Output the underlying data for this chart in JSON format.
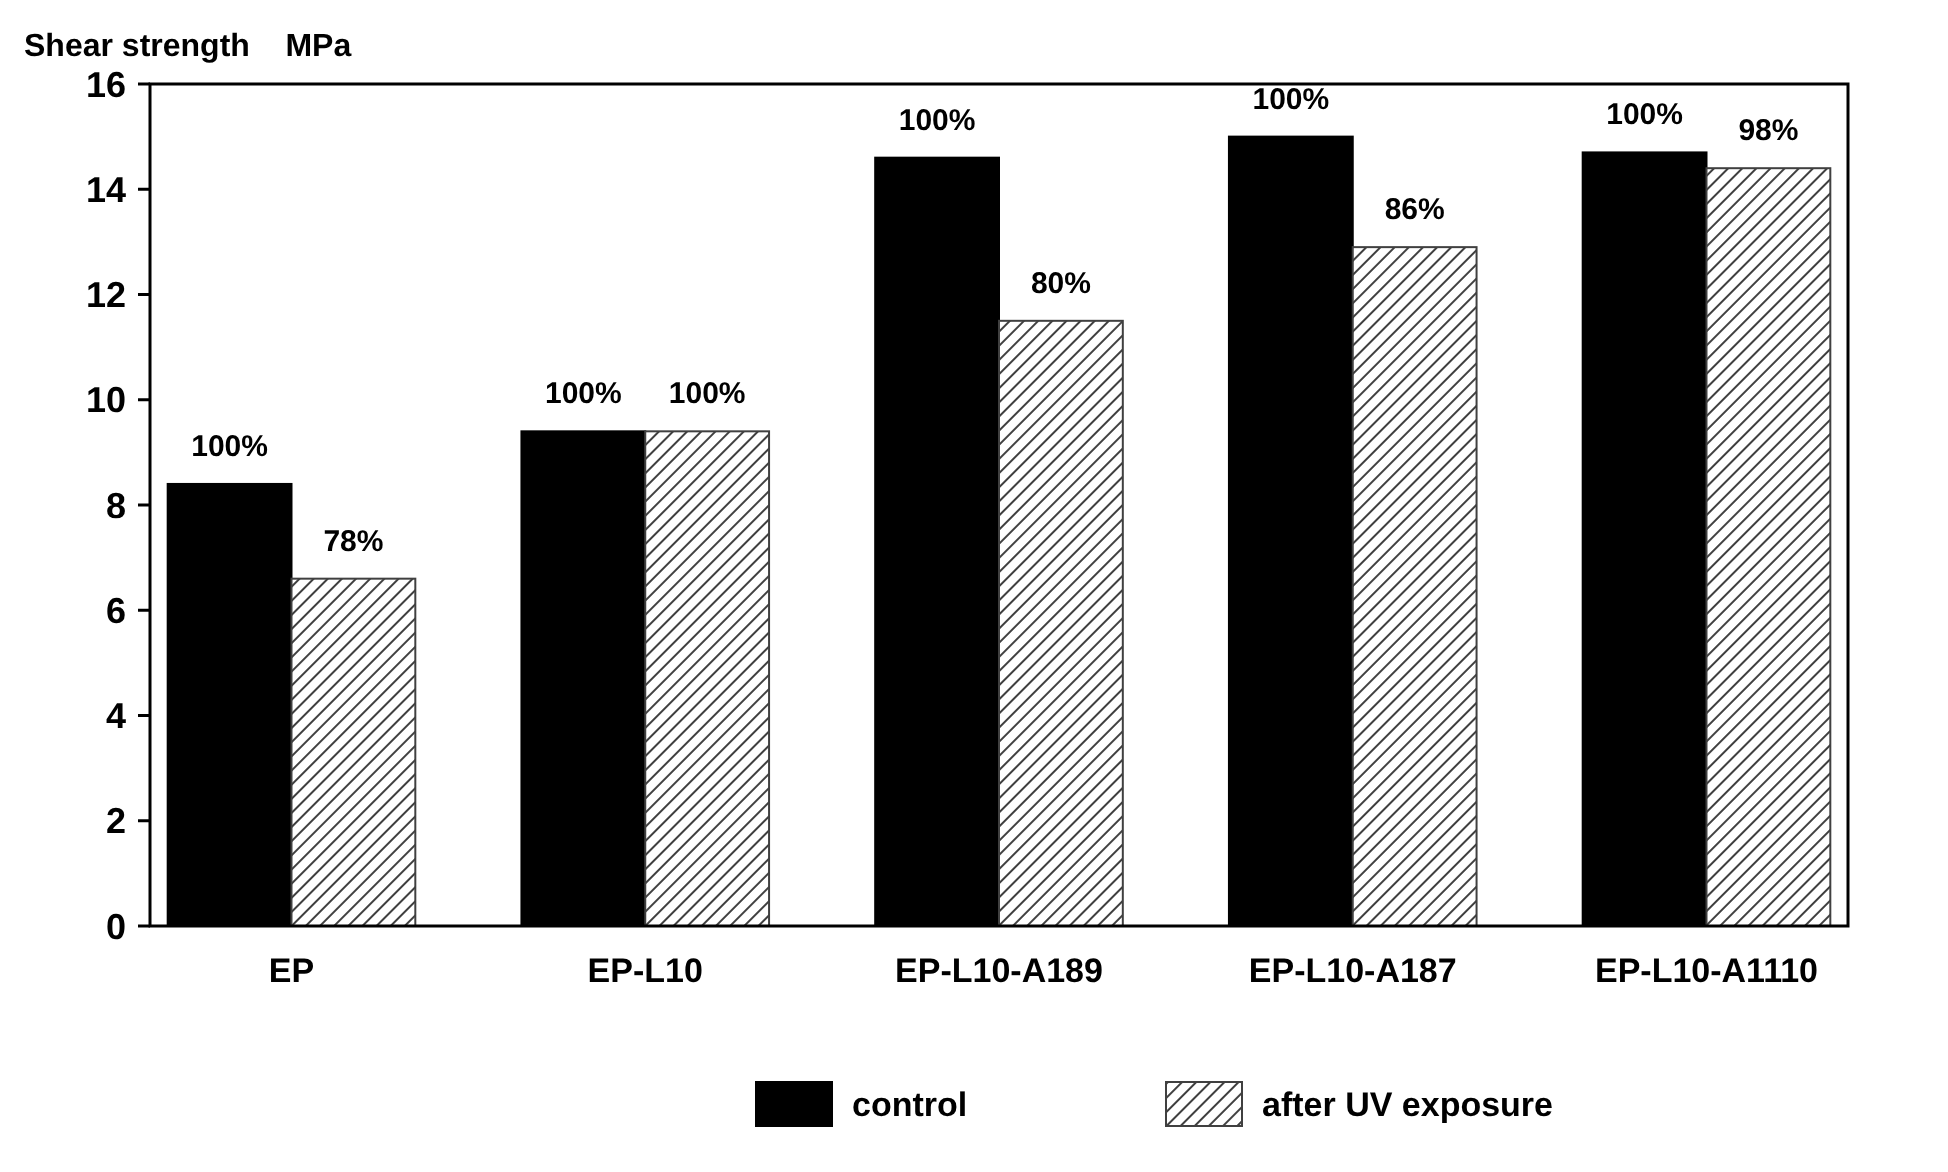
{
  "chart_data": {
    "type": "bar",
    "ylabel": "Shear strength    MPa",
    "categories": [
      "EP",
      "EP-L10",
      "EP-L10-A189",
      "EP-L10-A187",
      "EP-L10-A1110"
    ],
    "series": [
      {
        "name": "control",
        "color": "#000000",
        "values": [
          8.4,
          9.4,
          14.6,
          15.0,
          14.7
        ]
      },
      {
        "name": "after UV exposure",
        "color": "#404040",
        "values": [
          6.6,
          9.4,
          11.5,
          12.9,
          14.4
        ]
      }
    ],
    "annotations": [
      {
        "text": "100%",
        "x": "EP",
        "y": 8.4
      },
      {
        "text": "78%",
        "x": "EP",
        "y": 6.6
      },
      {
        "text": "100%",
        "x": "EP-L10",
        "y": 9.4
      },
      {
        "text": "100%",
        "x": "EP-L10",
        "y": 9.4
      },
      {
        "text": "100%",
        "x": "EP-L10-A189",
        "y": 14.6
      },
      {
        "text": "80%",
        "x": "EP-L10-A189",
        "y": 11.5
      },
      {
        "text": "100%",
        "x": "EP-L10-A187",
        "y": 15.0
      },
      {
        "text": "86%",
        "x": "EP-L10-A187",
        "y": 12.9
      },
      {
        "text": "100%",
        "x": "EP-L10-A1110",
        "y": 14.7
      },
      {
        "text": "98%",
        "x": "EP-L10-A1110",
        "y": 14.4
      }
    ],
    "ylim": [
      0,
      16
    ],
    "yticks": [
      0,
      2,
      4,
      6,
      8,
      10,
      12,
      14,
      16
    ],
    "grid": false,
    "legend": "bottom"
  }
}
